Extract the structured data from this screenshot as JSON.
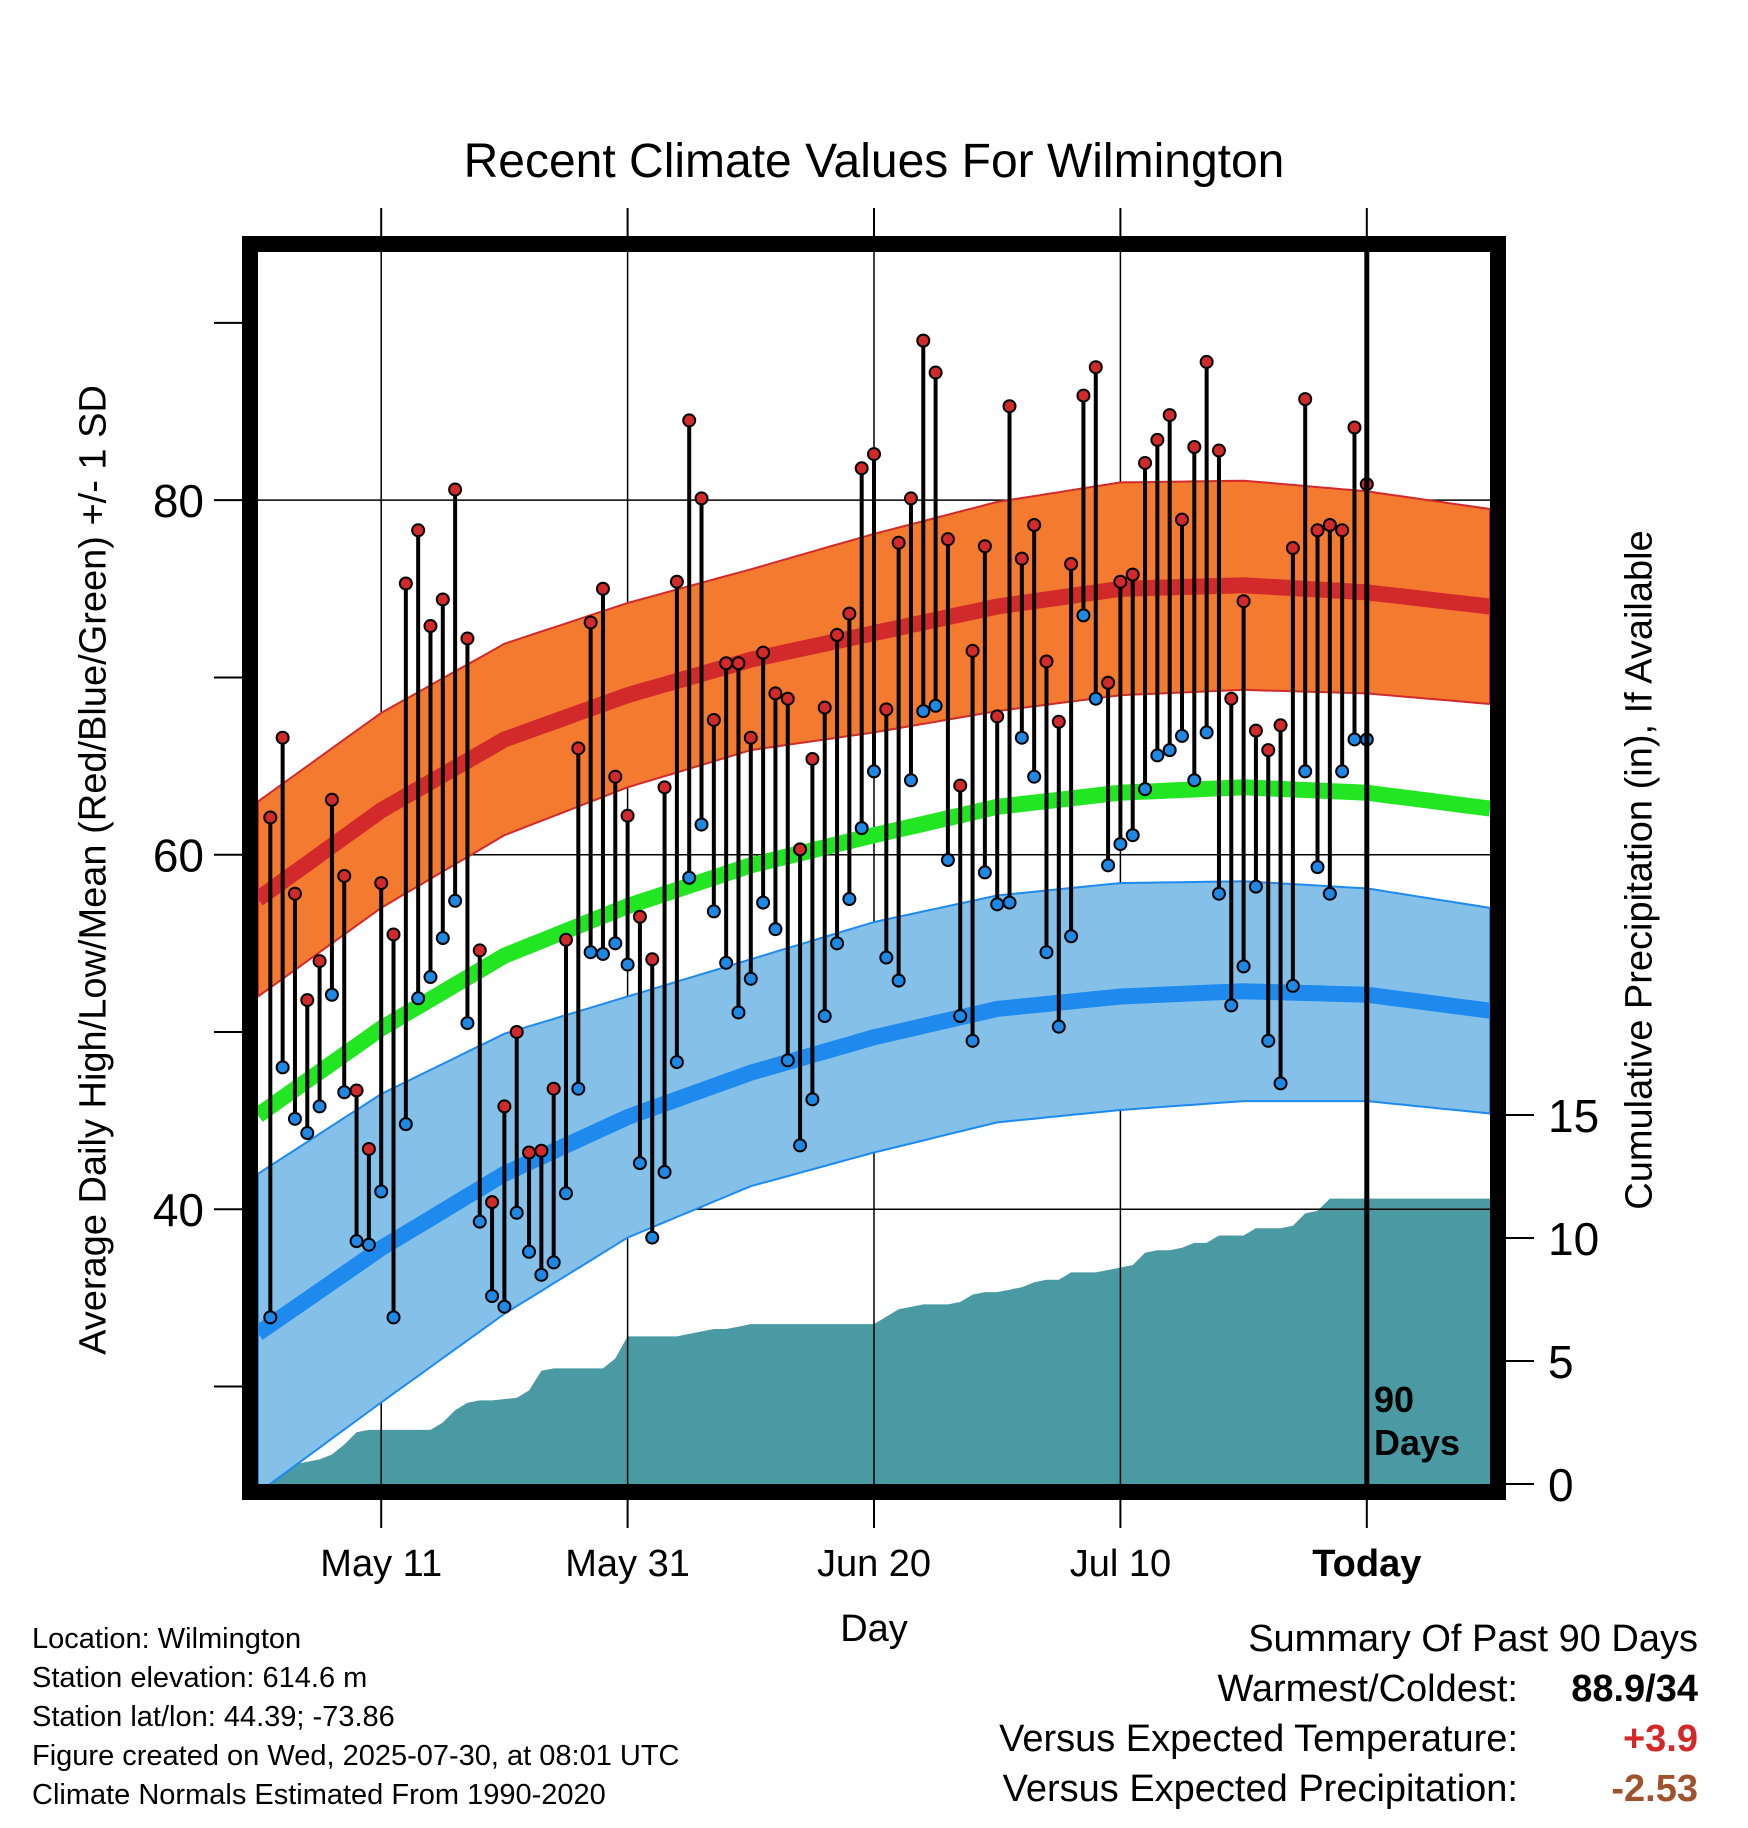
{
  "title": "Recent Climate Values For Wilmington",
  "chart_data": {
    "type": "line",
    "title": "Recent Climate Values For Wilmington",
    "xlabel": "Day",
    "ylabel": "Average Daily High/Low/Mean (Red/Blue/Green) +/- 1 SD",
    "y2label": "Cumulative Precipitation (in), If Available",
    "ylim": [
      24.5,
      94
    ],
    "y2lim": [
      0,
      50
    ],
    "xlim": [
      0,
      100
    ],
    "x_ticks": [
      {
        "day": 10,
        "label": "May 11"
      },
      {
        "day": 30,
        "label": "May 31"
      },
      {
        "day": 50,
        "label": "Jun 20"
      },
      {
        "day": 70,
        "label": "Jul 10"
      },
      {
        "day": 90,
        "label": "Today"
      }
    ],
    "y_ticks": [
      40,
      60,
      80
    ],
    "y_minor_ticks": [
      30,
      40,
      50,
      60,
      70,
      80,
      90
    ],
    "y2_ticks": [
      0,
      5,
      10,
      15
    ],
    "period_label": "90 Days",
    "today_day": 90,
    "grid": true,
    "normals": {
      "x": [
        0,
        10,
        20,
        30,
        40,
        50,
        60,
        70,
        80,
        90,
        100
      ],
      "high_mean": [
        57.5,
        62.5,
        66.5,
        69,
        71,
        72.5,
        74,
        75,
        75.2,
        74.8,
        74
      ],
      "high_sd": [
        5.5,
        5.5,
        5.4,
        5.2,
        5.1,
        5.6,
        5.9,
        6,
        5.9,
        5.7,
        5.5
      ],
      "low_mean": [
        33,
        37.8,
        42,
        45.2,
        47.7,
        49.7,
        51.3,
        52,
        52.3,
        52.1,
        51.2
      ],
      "low_sd": [
        9,
        8.7,
        7.9,
        6.8,
        6.4,
        6.5,
        6.4,
        6.4,
        6.2,
        6,
        5.8
      ],
      "avg_mean": [
        45.3,
        50.2,
        54.3,
        57.1,
        59.4,
        61.1,
        62.7,
        63.5,
        63.8,
        63.5,
        62.6
      ]
    },
    "series": [
      {
        "name": "High",
        "x": [
          1,
          2,
          3,
          4,
          5,
          6,
          7,
          8,
          9,
          10,
          11,
          12,
          13,
          14,
          15,
          16,
          17,
          18,
          19,
          20,
          21,
          22,
          23,
          24,
          25,
          26,
          27,
          28,
          29,
          30,
          31,
          32,
          33,
          34,
          35,
          36,
          37,
          38,
          39,
          40,
          41,
          42,
          43,
          44,
          45,
          46,
          47,
          48,
          49,
          50,
          51,
          52,
          53,
          54,
          55,
          56,
          57,
          58,
          59,
          60,
          61,
          62,
          63,
          64,
          65,
          66,
          67,
          68,
          69,
          70,
          71,
          72,
          73,
          74,
          75,
          76,
          77,
          78,
          79,
          80,
          81,
          82,
          83,
          84,
          85,
          86,
          87,
          88,
          89,
          90
        ],
        "values": [
          62.1,
          66.6,
          57.8,
          51.8,
          54.0,
          63.1,
          58.8,
          46.7,
          43.4,
          58.4,
          55.5,
          75.3,
          78.3,
          72.9,
          74.4,
          80.6,
          72.2,
          54.6,
          40.4,
          45.8,
          50.0,
          43.2,
          43.3,
          46.8,
          55.2,
          66.0,
          73.1,
          75.0,
          64.4,
          62.2,
          56.5,
          54.1,
          63.8,
          75.4,
          84.5,
          80.1,
          67.6,
          70.8,
          70.8,
          66.6,
          71.4,
          69.1,
          68.8,
          60.3,
          65.4,
          68.3,
          72.4,
          73.6,
          81.8,
          82.6,
          68.2,
          77.6,
          80.1,
          89.0,
          87.2,
          77.8,
          63.9,
          71.5,
          77.4,
          67.8,
          85.3,
          76.7,
          78.6,
          70.9,
          67.5,
          76.4,
          85.9,
          87.5,
          69.7,
          75.4,
          75.8,
          82.1,
          83.4,
          84.8,
          78.9,
          83.0,
          87.8,
          82.8,
          68.8,
          74.3,
          67.0,
          65.9,
          67.3,
          77.3,
          85.7,
          78.3,
          78.6,
          78.3,
          84.1,
          80.9
        ]
      },
      {
        "name": "Low",
        "x": [
          1,
          2,
          3,
          4,
          5,
          6,
          7,
          8,
          9,
          10,
          11,
          12,
          13,
          14,
          15,
          16,
          17,
          18,
          19,
          20,
          21,
          22,
          23,
          24,
          25,
          26,
          27,
          28,
          29,
          30,
          31,
          32,
          33,
          34,
          35,
          36,
          37,
          38,
          39,
          40,
          41,
          42,
          43,
          44,
          45,
          46,
          47,
          48,
          49,
          50,
          51,
          52,
          53,
          54,
          55,
          56,
          57,
          58,
          59,
          60,
          61,
          62,
          63,
          64,
          65,
          66,
          67,
          68,
          69,
          70,
          71,
          72,
          73,
          74,
          75,
          76,
          77,
          78,
          79,
          80,
          81,
          82,
          83,
          84,
          85,
          86,
          87,
          88,
          89,
          90
        ],
        "values": [
          33.9,
          48.0,
          45.1,
          44.3,
          45.8,
          52.1,
          46.6,
          38.2,
          38.0,
          41.0,
          33.9,
          44.8,
          51.9,
          53.1,
          55.3,
          57.4,
          50.5,
          39.3,
          35.1,
          34.5,
          39.8,
          37.6,
          36.3,
          37.0,
          40.9,
          46.8,
          54.5,
          54.4,
          55.0,
          53.8,
          42.6,
          38.4,
          42.1,
          48.3,
          58.7,
          61.7,
          56.8,
          53.9,
          51.1,
          53.0,
          57.3,
          55.8,
          48.4,
          43.6,
          46.2,
          50.9,
          55.0,
          57.5,
          61.5,
          64.7,
          54.2,
          52.9,
          64.2,
          68.1,
          68.4,
          59.7,
          50.9,
          49.5,
          59.0,
          57.2,
          57.3,
          66.6,
          64.4,
          54.5,
          50.3,
          55.4,
          73.5,
          68.8,
          59.4,
          60.6,
          61.1,
          63.7,
          65.6,
          65.9,
          66.7,
          64.2,
          66.9,
          57.8,
          51.5,
          53.7,
          58.2,
          49.5,
          47.1,
          52.6,
          64.7,
          59.3,
          57.8,
          64.7,
          66.5,
          66.5
        ]
      },
      {
        "name": "Cumulative Precipitation",
        "x": [
          0,
          1,
          3,
          5,
          6,
          7,
          8,
          9,
          10,
          12,
          14,
          15,
          16,
          17,
          18,
          19,
          21,
          22,
          23,
          24,
          27,
          28,
          29,
          30,
          31,
          34,
          35,
          36,
          37,
          38,
          39,
          40,
          41,
          42,
          43,
          44,
          46,
          47,
          48,
          49,
          50,
          51,
          52,
          53,
          54,
          55,
          56,
          57,
          58,
          59,
          60,
          61,
          62,
          63,
          64,
          65,
          66,
          67,
          68,
          69,
          70,
          71,
          72,
          73,
          74,
          75,
          76,
          77,
          78,
          79,
          80,
          81,
          82,
          83,
          84,
          85,
          86,
          87,
          88,
          89,
          90,
          100
        ],
        "values": [
          0,
          0.4,
          0.8,
          1.0,
          1.2,
          1.6,
          2.1,
          2.2,
          2.2,
          2.2,
          2.2,
          2.5,
          3.0,
          3.3,
          3.4,
          3.4,
          3.5,
          3.8,
          4.6,
          4.7,
          4.7,
          4.7,
          5.1,
          6.0,
          6.0,
          6.0,
          6.1,
          6.2,
          6.3,
          6.3,
          6.4,
          6.5,
          6.5,
          6.5,
          6.5,
          6.5,
          6.5,
          6.5,
          6.5,
          6.5,
          6.5,
          6.8,
          7.1,
          7.2,
          7.3,
          7.3,
          7.3,
          7.4,
          7.7,
          7.8,
          7.8,
          7.9,
          8.0,
          8.2,
          8.3,
          8.3,
          8.6,
          8.6,
          8.6,
          8.7,
          8.8,
          8.9,
          9.4,
          9.5,
          9.5,
          9.6,
          9.8,
          9.8,
          10.1,
          10.1,
          10.1,
          10.4,
          10.4,
          10.4,
          10.5,
          11.0,
          11.1,
          11.6,
          11.6,
          11.6,
          11.6,
          11.6
        ]
      }
    ]
  },
  "info": {
    "location": "Location: Wilmington",
    "elevation": "Station elevation: 614.6 m",
    "latlon": "Station lat/lon: 44.39; -73.86",
    "created": "Figure created on Wed, 2025-07-30, at 08:01 UTC",
    "normals": "Climate Normals Estimated From 1990-2020"
  },
  "summary": {
    "heading": "Summary Of Past 90 Days",
    "warmest_label": "Warmest/Coldest:",
    "warmest_value": "88.9/34",
    "temp_label": "Versus Expected Temperature:",
    "temp_value": "+3.9",
    "precip_label": "Versus Expected Precipitation:",
    "precip_value": "-2.53"
  },
  "colors": {
    "high_band": "#f47a30",
    "high_line": "#d22a2a",
    "low_band": "#84c0e8",
    "low_line": "#1e8aee",
    "avg_line": "#22e622",
    "precip_fill": "#4a9aa3",
    "high_point": "#d22a2a",
    "low_point": "#1e88e5"
  }
}
